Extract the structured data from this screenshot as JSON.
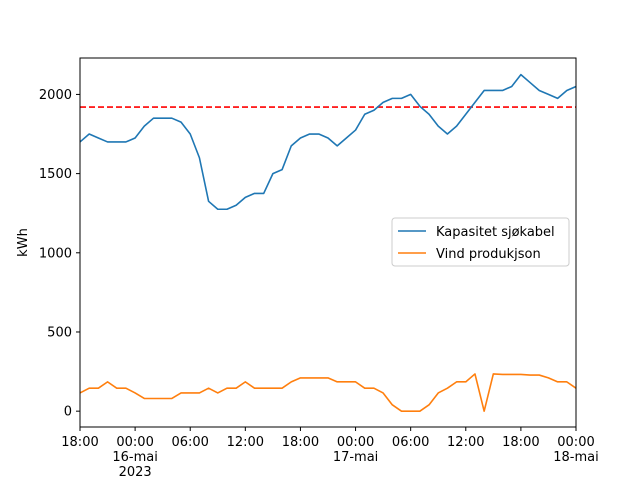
{
  "chart_data": {
    "type": "line",
    "title": "",
    "xlabel": "",
    "ylabel": "kWh",
    "xlim": [
      "2023-05-15T18:00",
      "2023-05-18T00:00"
    ],
    "ylim": [
      -100,
      2230
    ],
    "grid": false,
    "legend_position": "center-right",
    "x_ticks": [
      {
        "t": "2023-05-15T18:00",
        "lines": [
          "18:00"
        ]
      },
      {
        "t": "2023-05-16T00:00",
        "lines": [
          "00:00",
          "16-mai",
          "2023"
        ]
      },
      {
        "t": "2023-05-16T06:00",
        "lines": [
          "06:00"
        ]
      },
      {
        "t": "2023-05-16T12:00",
        "lines": [
          "12:00"
        ]
      },
      {
        "t": "2023-05-16T18:00",
        "lines": [
          "18:00"
        ]
      },
      {
        "t": "2023-05-17T00:00",
        "lines": [
          "00:00",
          "17-mai"
        ]
      },
      {
        "t": "2023-05-17T06:00",
        "lines": [
          "06:00"
        ]
      },
      {
        "t": "2023-05-17T12:00",
        "lines": [
          "12:00"
        ]
      },
      {
        "t": "2023-05-17T18:00",
        "lines": [
          "18:00"
        ]
      },
      {
        "t": "2023-05-18T00:00",
        "lines": [
          "00:00",
          "18-mai"
        ]
      }
    ],
    "y_ticks": [
      0,
      500,
      1000,
      1500,
      2000
    ],
    "reference_line": {
      "y": 1920,
      "color": "#ff0000",
      "style": "dashed"
    },
    "series": [
      {
        "name": "Kapasitet sjøkabel",
        "color": "#1f77b4",
        "points": [
          [
            "2023-05-15T18:00",
            1700
          ],
          [
            "2023-05-15T19:00",
            1750
          ],
          [
            "2023-05-15T20:00",
            1725
          ],
          [
            "2023-05-15T21:00",
            1700
          ],
          [
            "2023-05-15T22:00",
            1700
          ],
          [
            "2023-05-15T23:00",
            1700
          ],
          [
            "2023-05-16T00:00",
            1725
          ],
          [
            "2023-05-16T01:00",
            1800
          ],
          [
            "2023-05-16T02:00",
            1850
          ],
          [
            "2023-05-16T03:00",
            1850
          ],
          [
            "2023-05-16T04:00",
            1850
          ],
          [
            "2023-05-16T05:00",
            1825
          ],
          [
            "2023-05-16T06:00",
            1750
          ],
          [
            "2023-05-16T07:00",
            1600
          ],
          [
            "2023-05-16T08:00",
            1325
          ],
          [
            "2023-05-16T09:00",
            1275
          ],
          [
            "2023-05-16T10:00",
            1275
          ],
          [
            "2023-05-16T11:00",
            1300
          ],
          [
            "2023-05-16T12:00",
            1350
          ],
          [
            "2023-05-16T13:00",
            1375
          ],
          [
            "2023-05-16T14:00",
            1375
          ],
          [
            "2023-05-16T15:00",
            1500
          ],
          [
            "2023-05-16T16:00",
            1525
          ],
          [
            "2023-05-16T17:00",
            1675
          ],
          [
            "2023-05-16T18:00",
            1725
          ],
          [
            "2023-05-16T19:00",
            1750
          ],
          [
            "2023-05-16T20:00",
            1750
          ],
          [
            "2023-05-16T21:00",
            1725
          ],
          [
            "2023-05-16T22:00",
            1675
          ],
          [
            "2023-05-16T23:00",
            1725
          ],
          [
            "2023-05-17T00:00",
            1775
          ],
          [
            "2023-05-17T01:00",
            1875
          ],
          [
            "2023-05-17T02:00",
            1900
          ],
          [
            "2023-05-17T03:00",
            1950
          ],
          [
            "2023-05-17T04:00",
            1975
          ],
          [
            "2023-05-17T05:00",
            1975
          ],
          [
            "2023-05-17T06:00",
            2000
          ],
          [
            "2023-05-17T07:00",
            1925
          ],
          [
            "2023-05-17T08:00",
            1875
          ],
          [
            "2023-05-17T09:00",
            1800
          ],
          [
            "2023-05-17T10:00",
            1750
          ],
          [
            "2023-05-17T11:00",
            1800
          ],
          [
            "2023-05-17T12:00",
            1875
          ],
          [
            "2023-05-17T13:00",
            1950
          ],
          [
            "2023-05-17T14:00",
            2025
          ],
          [
            "2023-05-17T15:00",
            2025
          ],
          [
            "2023-05-17T16:00",
            2025
          ],
          [
            "2023-05-17T17:00",
            2050
          ],
          [
            "2023-05-17T18:00",
            2125
          ],
          [
            "2023-05-17T19:00",
            2075
          ],
          [
            "2023-05-17T20:00",
            2025
          ],
          [
            "2023-05-17T21:00",
            2000
          ],
          [
            "2023-05-17T22:00",
            1975
          ],
          [
            "2023-05-17T23:00",
            2025
          ],
          [
            "2023-05-18T00:00",
            2050
          ]
        ]
      },
      {
        "name": "Vind produkjson",
        "color": "#ff7f0e",
        "points": [
          [
            "2023-05-15T18:00",
            115
          ],
          [
            "2023-05-15T19:00",
            145
          ],
          [
            "2023-05-15T20:00",
            145
          ],
          [
            "2023-05-15T21:00",
            185
          ],
          [
            "2023-05-15T22:00",
            145
          ],
          [
            "2023-05-15T23:00",
            145
          ],
          [
            "2023-05-16T00:00",
            115
          ],
          [
            "2023-05-16T01:00",
            80
          ],
          [
            "2023-05-16T02:00",
            80
          ],
          [
            "2023-05-16T03:00",
            80
          ],
          [
            "2023-05-16T04:00",
            80
          ],
          [
            "2023-05-16T05:00",
            115
          ],
          [
            "2023-05-16T06:00",
            115
          ],
          [
            "2023-05-16T07:00",
            115
          ],
          [
            "2023-05-16T08:00",
            145
          ],
          [
            "2023-05-16T09:00",
            115
          ],
          [
            "2023-05-16T10:00",
            145
          ],
          [
            "2023-05-16T11:00",
            145
          ],
          [
            "2023-05-16T12:00",
            185
          ],
          [
            "2023-05-16T13:00",
            145
          ],
          [
            "2023-05-16T14:00",
            145
          ],
          [
            "2023-05-16T15:00",
            145
          ],
          [
            "2023-05-16T16:00",
            145
          ],
          [
            "2023-05-16T17:00",
            185
          ],
          [
            "2023-05-16T18:00",
            210
          ],
          [
            "2023-05-16T19:00",
            210
          ],
          [
            "2023-05-16T20:00",
            210
          ],
          [
            "2023-05-16T21:00",
            210
          ],
          [
            "2023-05-16T22:00",
            185
          ],
          [
            "2023-05-16T23:00",
            185
          ],
          [
            "2023-05-17T00:00",
            185
          ],
          [
            "2023-05-17T01:00",
            145
          ],
          [
            "2023-05-17T02:00",
            145
          ],
          [
            "2023-05-17T03:00",
            115
          ],
          [
            "2023-05-17T04:00",
            40
          ],
          [
            "2023-05-17T05:00",
            0
          ],
          [
            "2023-05-17T06:00",
            0
          ],
          [
            "2023-05-17T07:00",
            0
          ],
          [
            "2023-05-17T08:00",
            40
          ],
          [
            "2023-05-17T09:00",
            115
          ],
          [
            "2023-05-17T10:00",
            145
          ],
          [
            "2023-05-17T11:00",
            185
          ],
          [
            "2023-05-17T12:00",
            185
          ],
          [
            "2023-05-17T13:00",
            235
          ],
          [
            "2023-05-17T14:00",
            0
          ],
          [
            "2023-05-17T15:00",
            235
          ],
          [
            "2023-05-17T16:00",
            232
          ],
          [
            "2023-05-17T17:00",
            232
          ],
          [
            "2023-05-17T18:00",
            232
          ],
          [
            "2023-05-17T19:00",
            228
          ],
          [
            "2023-05-17T20:00",
            228
          ],
          [
            "2023-05-17T21:00",
            210
          ],
          [
            "2023-05-17T22:00",
            185
          ],
          [
            "2023-05-17T23:00",
            185
          ],
          [
            "2023-05-18T00:00",
            145
          ]
        ]
      }
    ]
  }
}
